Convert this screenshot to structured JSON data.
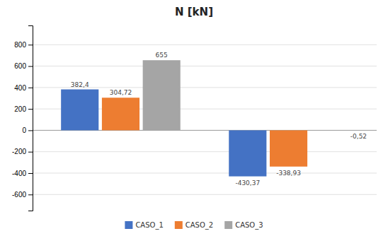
{
  "chart_data": {
    "type": "bar",
    "title": "N [kN]",
    "categories": [
      null,
      null
    ],
    "series": [
      {
        "name": "CASO_1",
        "color": "#4472C4",
        "values": [
          382.4,
          -430.37
        ],
        "value_labels": [
          "382,4",
          "-430,37"
        ]
      },
      {
        "name": "CASO_2",
        "color": "#ED7D31",
        "values": [
          304.72,
          -338.93
        ],
        "value_labels": [
          "304,72",
          "-338,93"
        ]
      },
      {
        "name": "CASO_3",
        "color": "#A5A5A5",
        "values": [
          655,
          -0.52
        ],
        "value_labels": [
          "655",
          "-0,52"
        ]
      }
    ],
    "ylim": [
      -750,
      980
    ],
    "yticks": [
      -600,
      -400,
      -200,
      0,
      200,
      400,
      600,
      800
    ],
    "grid": true,
    "legend": "bottom",
    "data_labels": true,
    "tick_labels": "y"
  }
}
